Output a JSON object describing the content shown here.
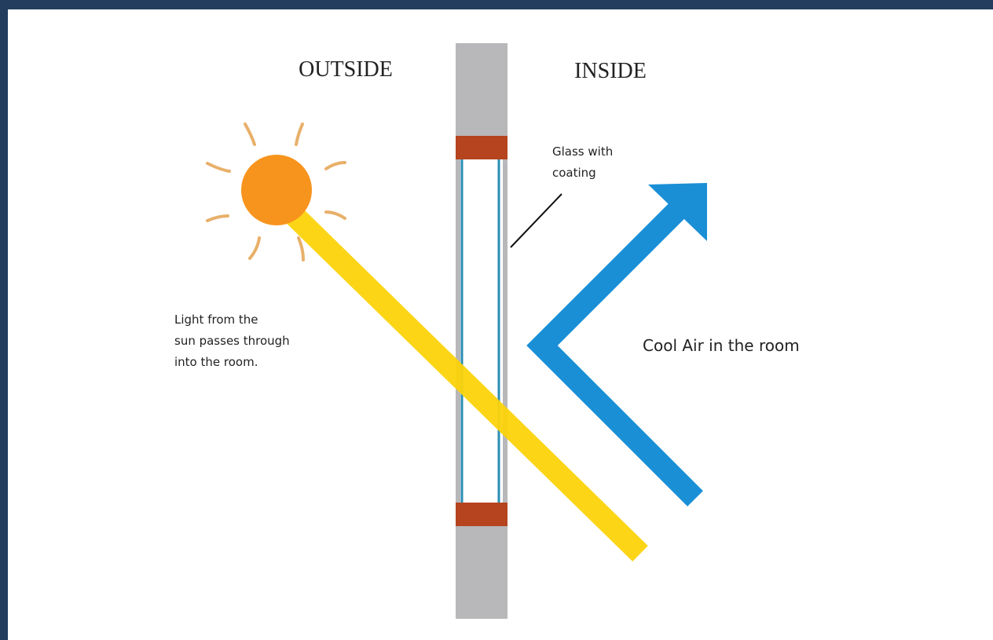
{
  "labels": {
    "outside": "OUTSIDE",
    "inside": "INSIDE",
    "glass": [
      "Glass with",
      "coating"
    ],
    "light": [
      "Light from the",
      "sun passes through",
      "into the room."
    ],
    "cool_air": "Cool Air in the room"
  }
}
